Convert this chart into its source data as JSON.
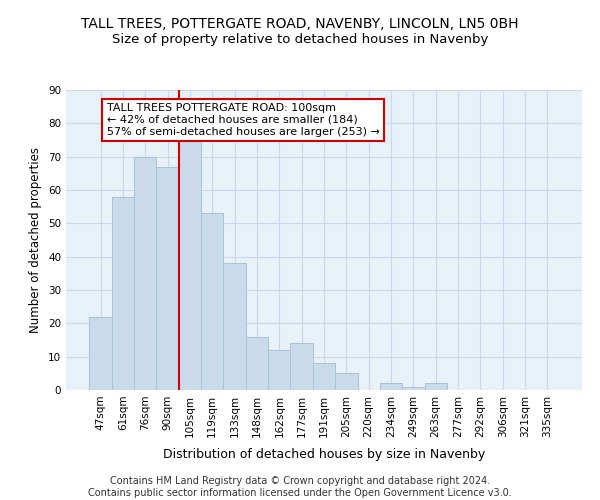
{
  "title": "TALL TREES, POTTERGATE ROAD, NAVENBY, LINCOLN, LN5 0BH",
  "subtitle": "Size of property relative to detached houses in Navenby",
  "xlabel": "Distribution of detached houses by size in Navenby",
  "ylabel": "Number of detached properties",
  "categories": [
    "47sqm",
    "61sqm",
    "76sqm",
    "90sqm",
    "105sqm",
    "119sqm",
    "133sqm",
    "148sqm",
    "162sqm",
    "177sqm",
    "191sqm",
    "205sqm",
    "220sqm",
    "234sqm",
    "249sqm",
    "263sqm",
    "277sqm",
    "292sqm",
    "306sqm",
    "321sqm",
    "335sqm"
  ],
  "values": [
    22,
    58,
    70,
    67,
    75,
    53,
    38,
    16,
    12,
    14,
    8,
    5,
    0,
    2,
    1,
    2,
    0,
    0,
    0,
    0,
    0
  ],
  "bar_color": "#c9daea",
  "bar_edge_color": "#a8c4d8",
  "vline_color": "#cc0000",
  "annotation_text": "TALL TREES POTTERGATE ROAD: 100sqm\n← 42% of detached houses are smaller (184)\n57% of semi-detached houses are larger (253) →",
  "annotation_box_color": "#ffffff",
  "annotation_box_edge": "#cc0000",
  "ylim": [
    0,
    90
  ],
  "yticks": [
    0,
    10,
    20,
    30,
    40,
    50,
    60,
    70,
    80,
    90
  ],
  "grid_color": "#c8d8e8",
  "background_color": "#e8f0f8",
  "footer": "Contains HM Land Registry data © Crown copyright and database right 2024.\nContains public sector information licensed under the Open Government Licence v3.0.",
  "title_fontsize": 10,
  "subtitle_fontsize": 9.5,
  "xlabel_fontsize": 9,
  "ylabel_fontsize": 8.5,
  "tick_fontsize": 7.5,
  "footer_fontsize": 7,
  "annotation_fontsize": 8
}
